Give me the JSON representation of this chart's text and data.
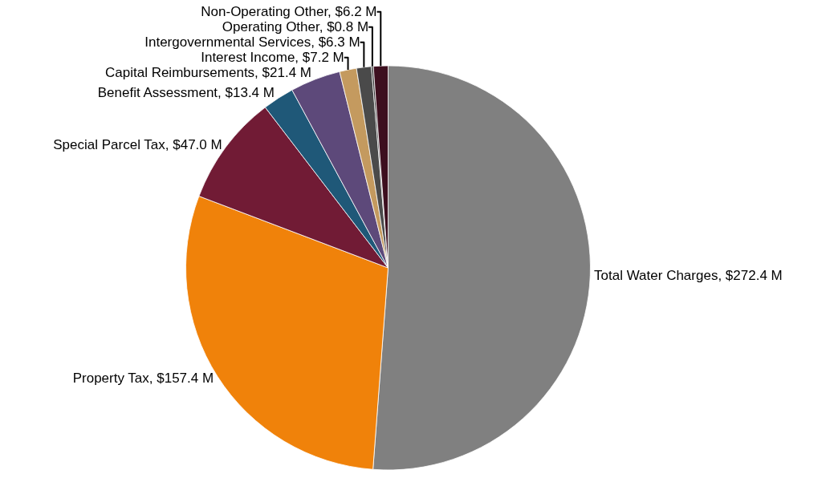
{
  "chart_data": {
    "type": "pie",
    "categories": [
      "Total Water Charges",
      "Property Tax",
      "Special Parcel Tax",
      "Benefit Assessment",
      "Capital Reimbursements",
      "Interest Income",
      "Intergovernmental Services",
      "Operating Other",
      "Non-Operating Other"
    ],
    "values": [
      272.4,
      157.4,
      47.0,
      13.4,
      21.4,
      7.2,
      6.3,
      0.8,
      6.2
    ],
    "value_labels": [
      "$272.4 M",
      "$157.4 M",
      "$47.0 M",
      "$13.4 M",
      "$21.4 M",
      "$7.2 M",
      "$6.3 M",
      "$0.8 M",
      "$6.2 M"
    ],
    "colors": [
      "#808080",
      "#f0820a",
      "#711b35",
      "#1f5878",
      "#5d497a",
      "#c49a5f",
      "#4a4a4a",
      "#2e2e2e",
      "#3d0f1f"
    ],
    "legend": false
  }
}
